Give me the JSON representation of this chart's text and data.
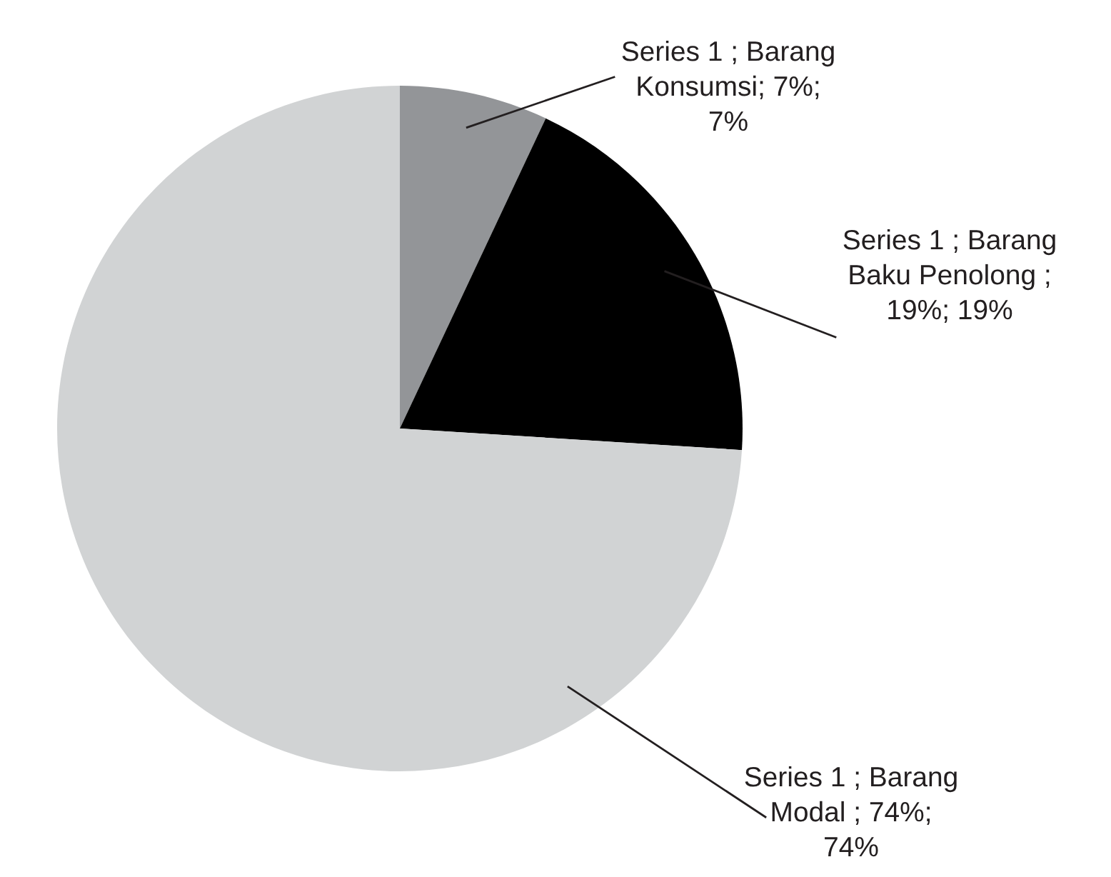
{
  "chart_data": {
    "type": "pie",
    "categories": [
      "Series 1 ; Barang Konsumsi; 7%; 7%",
      "Series 1 ; Barang Baku Penolong ; 19%; 19%",
      "Series 1 ; Barang Modal ; 74%; 74%"
    ],
    "values": [
      7,
      19,
      74
    ],
    "colors": [
      "#939598",
      "#000000",
      "#d1d3d4"
    ]
  }
}
